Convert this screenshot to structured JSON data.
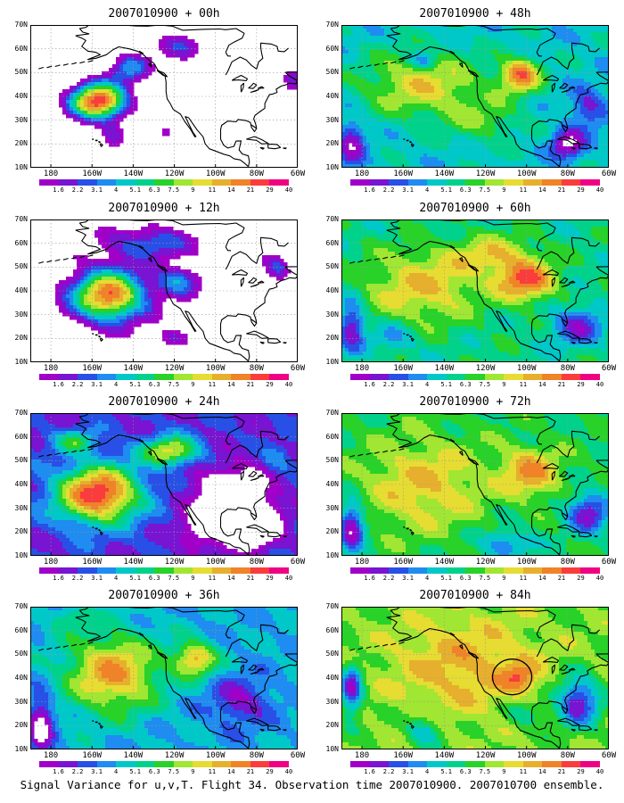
{
  "figure": {
    "caption": "Signal Variance for u,v,T. Flight 34. Observation time 2007010900. 2007010700 ensemble.",
    "panels": [
      {
        "title": "2007010900 + 00h",
        "lead_hours": 0
      },
      {
        "title": "2007010900 + 48h",
        "lead_hours": 48
      },
      {
        "title": "2007010900 + 12h",
        "lead_hours": 12
      },
      {
        "title": "2007010900 + 60h",
        "lead_hours": 60
      },
      {
        "title": "2007010900 + 24h",
        "lead_hours": 24
      },
      {
        "title": "2007010900 + 72h",
        "lead_hours": 72
      },
      {
        "title": "2007010900 + 36h",
        "lead_hours": 36
      },
      {
        "title": "2007010900 + 84h",
        "lead_hours": 84
      }
    ],
    "lat_labels": [
      "70N",
      "60N",
      "50N",
      "40N",
      "30N",
      "20N",
      "10N"
    ],
    "lon_labels": [
      "180",
      "160W",
      "140W",
      "120W",
      "100W",
      "80W",
      "60W"
    ],
    "colorbar": {
      "levels": [
        "1.6",
        "2.2",
        "3.1",
        "4",
        "5.1",
        "6.3",
        "7.5",
        "9",
        "11",
        "14",
        "21",
        "29",
        "40"
      ],
      "colors": [
        "#ffffff",
        "#a000c8",
        "#7814d2",
        "#2850e6",
        "#1e8cf0",
        "#00c8c8",
        "#00d28c",
        "#28d228",
        "#a0e632",
        "#e6dc32",
        "#e6af2d",
        "#f08228",
        "#fa3c3c",
        "#f00082"
      ]
    },
    "annotation": "circle-marker-84h"
  }
}
